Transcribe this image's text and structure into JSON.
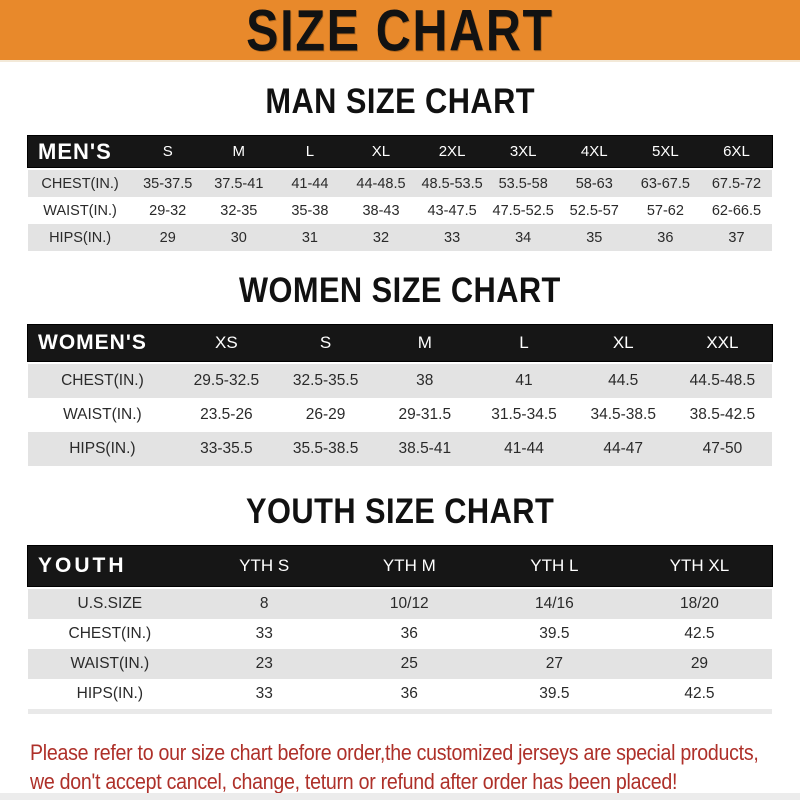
{
  "colors": {
    "banner_bg": "#E8892B",
    "header_bar": "#161616",
    "row_alt": "#E3E3E3",
    "footer_text": "#AE3029"
  },
  "banner": {
    "title": "SIZE CHART"
  },
  "chart_data": [
    {
      "type": "table",
      "name": "men-size-table",
      "title": "MAN SIZE CHART",
      "columns": [
        "MEN'S",
        "S",
        "M",
        "L",
        "XL",
        "2XL",
        "3XL",
        "4XL",
        "5XL",
        "6XL"
      ],
      "rows": [
        {
          "label": "CHEST(IN.)",
          "values": [
            "35-37.5",
            "37.5-41",
            "41-44",
            "44-48.5",
            "48.5-53.5",
            "53.5-58",
            "58-63",
            "63-67.5",
            "67.5-72"
          ]
        },
        {
          "label": "WAIST(IN.)",
          "values": [
            "29-32",
            "32-35",
            "35-38",
            "38-43",
            "43-47.5",
            "47.5-52.5",
            "52.5-57",
            "57-62",
            "62-66.5"
          ]
        },
        {
          "label": "HIPS(IN.)",
          "values": [
            "29",
            "30",
            "31",
            "32",
            "33",
            "34",
            "35",
            "36",
            "37"
          ]
        }
      ]
    },
    {
      "type": "table",
      "name": "women-size-table",
      "title": "WOMEN SIZE CHART",
      "columns": [
        "WOMEN'S",
        "XS",
        "S",
        "M",
        "L",
        "XL",
        "XXL"
      ],
      "rows": [
        {
          "label": "CHEST(IN.)",
          "values": [
            "29.5-32.5",
            "32.5-35.5",
            "38",
            "41",
            "44.5",
            "44.5-48.5"
          ]
        },
        {
          "label": "WAIST(IN.)",
          "values": [
            "23.5-26",
            "26-29",
            "29-31.5",
            "31.5-34.5",
            "34.5-38.5",
            "38.5-42.5"
          ]
        },
        {
          "label": "HIPS(IN.)",
          "values": [
            "33-35.5",
            "35.5-38.5",
            "38.5-41",
            "41-44",
            "44-47",
            "47-50"
          ]
        }
      ]
    },
    {
      "type": "table",
      "name": "youth-size-table",
      "title": "YOUTH SIZE CHART",
      "columns": [
        "YOUTH",
        "YTH S",
        "YTH M",
        "YTH L",
        "YTH XL"
      ],
      "rows": [
        {
          "label": "U.S.SIZE",
          "values": [
            "8",
            "10/12",
            "14/16",
            "18/20"
          ]
        },
        {
          "label": "CHEST(IN.)",
          "values": [
            "33",
            "36",
            "39.5",
            "42.5"
          ]
        },
        {
          "label": "WAIST(IN.)",
          "values": [
            "23",
            "25",
            "27",
            "29"
          ]
        },
        {
          "label": "HIPS(IN.)",
          "values": [
            "33",
            "36",
            "39.5",
            "42.5"
          ]
        }
      ]
    }
  ],
  "footer": {
    "line1": "Please refer to our size chart before order,the customized jerseys are special products,",
    "line2": "we don't accept cancel, change, teturn or refund after order has been placed!"
  }
}
